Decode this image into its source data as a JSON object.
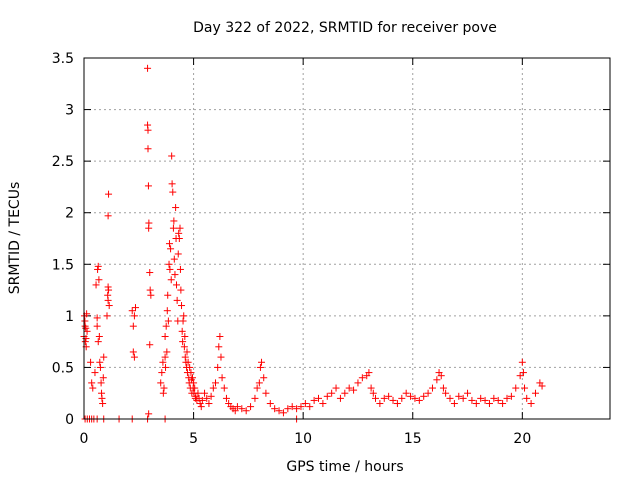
{
  "chart_data": {
    "type": "scatter",
    "title": "Day 322 of 2022, SRMTID for receiver pove",
    "xlabel": "GPS time / hours",
    "ylabel": "SRMTID / TECUs",
    "xlim": [
      0,
      24
    ],
    "ylim": [
      0,
      3.5
    ],
    "x_ticks": [
      0,
      5,
      10,
      15,
      20
    ],
    "x_tick_labels": [
      "0",
      "5",
      "10",
      "15",
      "20"
    ],
    "y_ticks": [
      0,
      0.5,
      1,
      1.5,
      2,
      2.5,
      3,
      3.5
    ],
    "y_tick_labels": [
      "0",
      "0.5",
      "1",
      "1.5",
      "2",
      "2.5",
      "3",
      "3.5"
    ],
    "grid": true,
    "marker": "+",
    "series": [
      {
        "name": "SRMTID",
        "color": "#ff0000",
        "x": [
          0.0,
          0.02,
          0.04,
          0.06,
          0.08,
          0.1,
          0.12,
          0.14,
          0.05,
          0.09,
          0.3,
          0.35,
          0.4,
          0.5,
          0.6,
          0.55,
          0.62,
          0.65,
          0.68,
          0.7,
          0.72,
          0.75,
          0.78,
          0.8,
          0.82,
          0.85,
          0.88,
          0.9,
          0.6,
          0.65,
          1.05,
          1.1,
          1.12,
          1.15,
          1.08,
          1.1,
          1.12,
          1.1,
          2.2,
          2.25,
          2.3,
          2.25,
          2.3,
          2.35,
          2.9,
          2.9,
          2.92,
          2.92,
          2.94,
          2.96,
          2.95,
          3.0,
          3.02,
          3.05,
          3.0,
          2.95,
          3.5,
          3.55,
          3.6,
          3.62,
          3.65,
          3.7,
          3.7,
          3.72,
          3.75,
          3.78,
          3.8,
          3.82,
          3.85,
          3.88,
          3.9,
          3.92,
          3.95,
          3.98,
          4.0,
          4.02,
          4.05,
          4.08,
          4.1,
          4.12,
          4.15,
          4.18,
          4.2,
          4.22,
          4.25,
          4.28,
          4.3,
          4.32,
          4.35,
          4.38,
          4.4,
          4.42,
          4.45,
          4.48,
          4.5,
          4.52,
          4.55,
          4.58,
          4.6,
          4.62,
          4.65,
          4.68,
          4.7,
          4.72,
          4.75,
          4.78,
          4.8,
          4.82,
          4.85,
          4.88,
          4.9,
          4.92,
          4.95,
          4.98,
          5.0,
          5.02,
          5.05,
          5.08,
          5.1,
          5.15,
          5.2,
          5.25,
          5.3,
          5.35,
          5.4,
          5.5,
          5.6,
          5.7,
          5.8,
          5.9,
          6.0,
          6.1,
          6.15,
          6.2,
          6.25,
          6.3,
          6.4,
          6.5,
          6.6,
          6.7,
          6.8,
          6.9,
          7.0,
          7.2,
          7.4,
          7.6,
          7.8,
          7.9,
          8.0,
          8.05,
          8.1,
          8.2,
          8.3,
          8.5,
          8.7,
          8.9,
          9.1,
          9.3,
          9.5,
          9.7,
          9.9,
          10.1,
          10.3,
          10.5,
          10.7,
          10.9,
          11.1,
          11.3,
          11.5,
          11.7,
          11.9,
          12.1,
          12.3,
          12.5,
          12.7,
          12.9,
          13.0,
          13.1,
          13.2,
          13.3,
          13.5,
          13.7,
          13.9,
          14.1,
          14.3,
          14.5,
          14.7,
          14.9,
          15.1,
          15.3,
          15.5,
          15.7,
          15.9,
          16.1,
          16.2,
          16.3,
          16.4,
          16.5,
          16.7,
          16.9,
          17.1,
          17.3,
          17.5,
          17.7,
          17.9,
          18.1,
          18.3,
          18.5,
          18.7,
          18.9,
          19.1,
          19.3,
          19.5,
          19.7,
          19.9,
          20.0,
          20.05,
          20.1,
          20.2,
          20.4,
          20.6,
          20.8,
          20.9,
          0.05,
          0.15,
          0.25,
          0.35,
          0.45,
          0.6,
          0.9,
          1.6,
          2.2,
          2.9,
          3.7,
          9.7
        ],
        "y": [
          0.8,
          1.0,
          0.95,
          0.75,
          0.88,
          0.7,
          1.02,
          0.85,
          0.9,
          0.78,
          0.55,
          0.35,
          0.3,
          0.45,
          0.9,
          1.3,
          1.45,
          1.48,
          1.35,
          0.8,
          0.55,
          0.5,
          0.35,
          0.25,
          0.2,
          0.15,
          0.4,
          0.6,
          0.98,
          0.75,
          1.0,
          1.15,
          1.25,
          1.1,
          1.2,
          1.28,
          2.18,
          1.97,
          1.05,
          0.9,
          0.6,
          0.65,
          1.0,
          1.08,
          3.4,
          2.85,
          2.8,
          2.62,
          2.26,
          1.9,
          1.85,
          1.42,
          1.25,
          1.2,
          0.72,
          0.05,
          0.35,
          0.45,
          0.55,
          0.25,
          0.3,
          0.6,
          0.8,
          0.5,
          0.9,
          0.65,
          1.05,
          1.2,
          0.95,
          1.5,
          1.7,
          1.45,
          1.65,
          1.35,
          2.55,
          2.28,
          2.2,
          1.85,
          1.92,
          1.55,
          1.4,
          2.05,
          1.75,
          1.3,
          1.15,
          0.95,
          1.6,
          1.8,
          1.75,
          1.85,
          1.45,
          1.25,
          1.1,
          0.85,
          0.75,
          0.95,
          1.0,
          0.7,
          0.8,
          0.6,
          0.55,
          0.5,
          0.65,
          0.45,
          0.55,
          0.4,
          0.35,
          0.5,
          0.3,
          0.45,
          0.38,
          0.25,
          0.4,
          0.3,
          0.35,
          0.25,
          0.3,
          0.2,
          0.22,
          0.18,
          0.25,
          0.2,
          0.15,
          0.12,
          0.18,
          0.25,
          0.2,
          0.15,
          0.22,
          0.3,
          0.35,
          0.5,
          0.7,
          0.8,
          0.6,
          0.4,
          0.3,
          0.2,
          0.15,
          0.12,
          0.1,
          0.08,
          0.12,
          0.1,
          0.08,
          0.12,
          0.2,
          0.3,
          0.35,
          0.5,
          0.55,
          0.4,
          0.25,
          0.15,
          0.1,
          0.08,
          0.06,
          0.1,
          0.12,
          0.1,
          0.12,
          0.15,
          0.12,
          0.18,
          0.2,
          0.15,
          0.22,
          0.25,
          0.3,
          0.2,
          0.25,
          0.3,
          0.28,
          0.35,
          0.4,
          0.42,
          0.45,
          0.3,
          0.25,
          0.2,
          0.15,
          0.2,
          0.22,
          0.18,
          0.15,
          0.2,
          0.25,
          0.22,
          0.2,
          0.18,
          0.22,
          0.25,
          0.3,
          0.38,
          0.45,
          0.42,
          0.3,
          0.25,
          0.2,
          0.15,
          0.22,
          0.2,
          0.25,
          0.18,
          0.15,
          0.2,
          0.18,
          0.15,
          0.2,
          0.18,
          0.15,
          0.2,
          0.22,
          0.3,
          0.42,
          0.55,
          0.45,
          0.3,
          0.2,
          0.15,
          0.25,
          0.35,
          0.32,
          0.0,
          0.0,
          0.0,
          0.0,
          0.0,
          0.0,
          0.0,
          0.0,
          0.0,
          0.0,
          0.0,
          0.0
        ]
      }
    ]
  }
}
